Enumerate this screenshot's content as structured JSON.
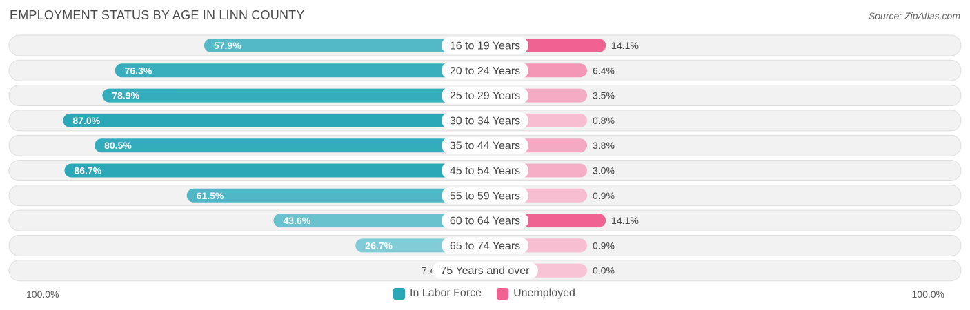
{
  "title": "EMPLOYMENT STATUS BY AGE IN LINN COUNTY",
  "source": "Source: ZipAtlas.com",
  "axis": {
    "left_label": "100.0%",
    "right_label": "100.0%"
  },
  "legend": [
    {
      "name": "In Labor Force",
      "color": "#2aa8b8"
    },
    {
      "name": "Unemployed",
      "color": "#f06292"
    }
  ],
  "chart_data": {
    "type": "bar",
    "orientation": "horizontal-diverging",
    "categories": [
      "16 to 19 Years",
      "20 to 24 Years",
      "25 to 29 Years",
      "30 to 34 Years",
      "35 to 44 Years",
      "45 to 54 Years",
      "55 to 59 Years",
      "60 to 64 Years",
      "65 to 74 Years",
      "75 Years and over"
    ],
    "series": [
      {
        "name": "In Labor Force",
        "values": [
          57.9,
          76.3,
          78.9,
          87.0,
          80.5,
          86.7,
          61.5,
          43.6,
          26.7,
          7.4
        ],
        "labels": [
          "57.9%",
          "76.3%",
          "78.9%",
          "87.0%",
          "80.5%",
          "86.7%",
          "61.5%",
          "43.6%",
          "26.7%",
          "7.4%"
        ]
      },
      {
        "name": "Unemployed",
        "values": [
          14.1,
          6.4,
          3.5,
          0.8,
          3.8,
          3.0,
          0.9,
          14.1,
          0.9,
          0.0
        ],
        "labels": [
          "14.1%",
          "6.4%",
          "3.5%",
          "0.8%",
          "3.8%",
          "3.0%",
          "0.9%",
          "14.1%",
          "0.9%",
          "0.0%"
        ]
      }
    ],
    "xlim_left": [
      0,
      100
    ],
    "xlim_right": [
      0,
      100
    ],
    "legend_position": "bottom-center"
  }
}
